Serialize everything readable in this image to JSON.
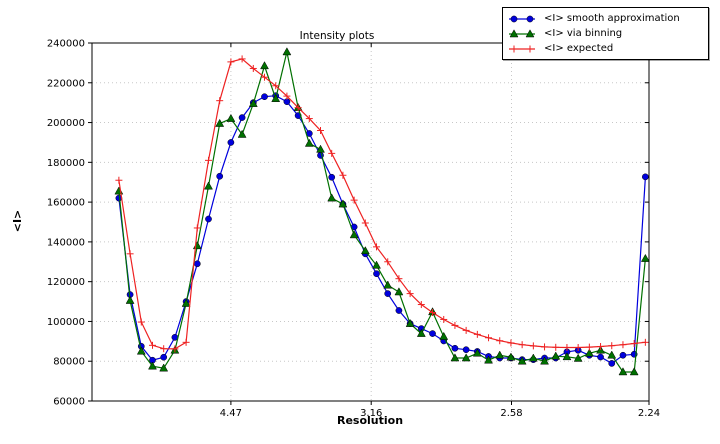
{
  "chart_data": {
    "type": "line",
    "title": "Intensity plots",
    "xlabel": "Resolution",
    "ylabel": "<I>",
    "grid": true,
    "legend_position": "upper right",
    "x_axis": {
      "scale_note": "linear in 1/d^2, labels are resolution d in Angstrom",
      "min_inv_d2": 0.0004,
      "max_inv_d2": 0.1993,
      "ticks": [
        {
          "label": "4.47",
          "inv_d2": 0.05
        },
        {
          "label": "3.16",
          "inv_d2": 0.1001
        },
        {
          "label": "2.58",
          "inv_d2": 0.1502
        },
        {
          "label": "2.24",
          "inv_d2": 0.1993
        }
      ]
    },
    "y_axis": {
      "min": 60000,
      "max": 240000,
      "ticks": [
        {
          "label": "60000",
          "value": 60000
        },
        {
          "label": "80000",
          "value": 80000
        },
        {
          "label": "100000",
          "value": 100000
        },
        {
          "label": "120000",
          "value": 120000
        },
        {
          "label": "140000",
          "value": 140000
        },
        {
          "label": "160000",
          "value": 160000
        },
        {
          "label": "180000",
          "value": 180000
        },
        {
          "label": "200000",
          "value": 200000
        },
        {
          "label": "220000",
          "value": 220000
        },
        {
          "label": "240000",
          "value": 240000
        }
      ]
    },
    "x": [
      0.01,
      0.014,
      0.018,
      0.022,
      0.026,
      0.03,
      0.034,
      0.038,
      0.042,
      0.046,
      0.05,
      0.054,
      0.058,
      0.062,
      0.066,
      0.07,
      0.074,
      0.078,
      0.082,
      0.086,
      0.09,
      0.094,
      0.098,
      0.102,
      0.106,
      0.11,
      0.114,
      0.118,
      0.122,
      0.126,
      0.13,
      0.134,
      0.138,
      0.142,
      0.146,
      0.15,
      0.154,
      0.158,
      0.162,
      0.166,
      0.17,
      0.174,
      0.178,
      0.182,
      0.186,
      0.19,
      0.194,
      0.198
    ],
    "series": [
      {
        "key": "smooth-approximation",
        "name": "<I> smooth approximation",
        "color": "#0000dd",
        "marker": "circle",
        "values": [
          162000,
          113500,
          87500,
          80500,
          82000,
          92000,
          110000,
          129000,
          151500,
          173000,
          190000,
          202500,
          210000,
          213000,
          213500,
          210500,
          203500,
          194500,
          183500,
          172500,
          159000,
          147500,
          134000,
          124000,
          114000,
          105500,
          98900,
          96400,
          93900,
          90200,
          86500,
          85800,
          84900,
          82400,
          81600,
          81600,
          80800,
          80800,
          81600,
          81600,
          84700,
          85500,
          83000,
          82100,
          78900,
          83000,
          83500,
          172700
        ]
      },
      {
        "key": "via-binning",
        "name": "<I> via binning",
        "color": "#007000",
        "marker": "triangle",
        "values": [
          165500,
          110500,
          85000,
          77500,
          76500,
          85500,
          109000,
          138000,
          168000,
          199500,
          202000,
          194000,
          209500,
          228500,
          212000,
          235500,
          207500,
          189500,
          186500,
          162000,
          159000,
          143500,
          135500,
          128200,
          118200,
          114800,
          98900,
          93900,
          104800,
          92400,
          81600,
          81600,
          84000,
          80500,
          83000,
          82000,
          80000,
          81500,
          80000,
          82500,
          82200,
          81400,
          84000,
          85500,
          83000,
          74600,
          74600,
          131600
        ]
      },
      {
        "key": "expected",
        "name": "<I> expected",
        "color": "#ee2222",
        "marker": "plus",
        "values": [
          171000,
          134000,
          99700,
          88000,
          86300,
          86200,
          89500,
          147000,
          181000,
          211000,
          230500,
          232000,
          227200,
          222800,
          218500,
          213300,
          207500,
          202000,
          196000,
          184500,
          173500,
          161000,
          149500,
          137500,
          130000,
          121500,
          114000,
          108500,
          104500,
          101000,
          98000,
          95500,
          93500,
          91800,
          90300,
          89200,
          88300,
          87700,
          87200,
          87000,
          86900,
          86900,
          87100,
          87400,
          87800,
          88300,
          88900,
          89500
        ]
      }
    ],
    "colors": {
      "grid": "#c8c8c8",
      "spine": "#000000",
      "background": "#ffffff"
    }
  }
}
